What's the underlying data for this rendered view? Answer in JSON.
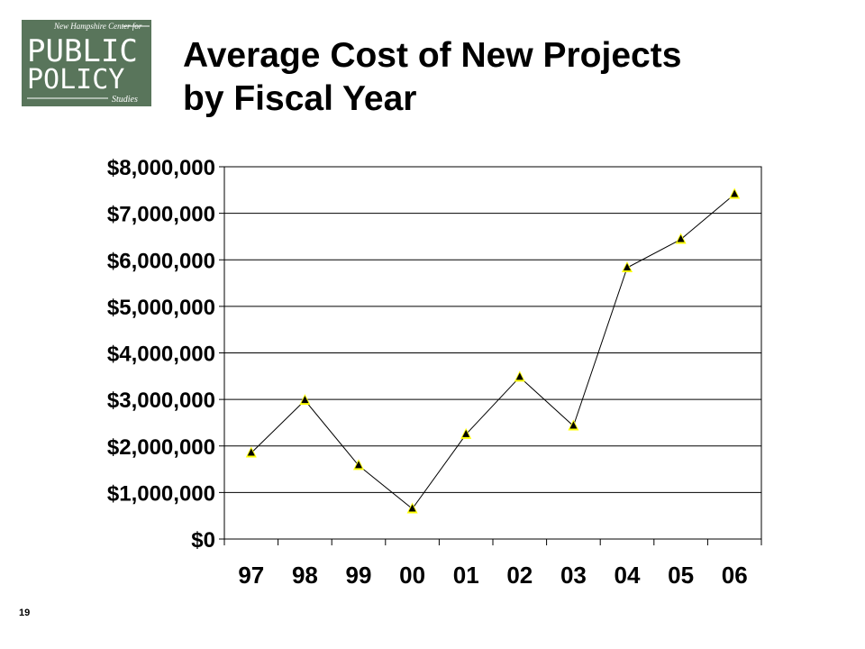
{
  "logo": {
    "line1": "New Hampshire Center for",
    "line2": "PUBLIC",
    "line3": "POLICY",
    "line4": "Studies",
    "bg_color": "#4f6b52"
  },
  "slide": {
    "title_line1": "Average Cost of New Projects",
    "title_line2": "by Fiscal Year",
    "page_number": "19"
  },
  "chart_data": {
    "type": "line",
    "title": "Average Cost of New Projects by Fiscal Year",
    "xlabel": "",
    "ylabel": "",
    "categories": [
      "97",
      "98",
      "99",
      "00",
      "01",
      "02",
      "03",
      "04",
      "05",
      "06"
    ],
    "series": [
      {
        "values": [
          1850000,
          2980000,
          1580000,
          650000,
          2250000,
          3480000,
          2430000,
          5830000,
          6440000,
          7410000
        ],
        "color": "#000000",
        "marker": "triangle",
        "marker_color": "#000000",
        "marker_highlight": "#ffff00"
      }
    ],
    "ylim": [
      0,
      8000000
    ],
    "yticks": [
      0,
      1000000,
      2000000,
      3000000,
      4000000,
      5000000,
      6000000,
      7000000,
      8000000
    ],
    "ytick_labels": [
      "$0",
      "$1,000,000",
      "$2,000,000",
      "$3,000,000",
      "$4,000,000",
      "$5,000,000",
      "$6,000,000",
      "$7,000,000",
      "$8,000,000"
    ],
    "grid": "horizontal",
    "legend": "none"
  }
}
